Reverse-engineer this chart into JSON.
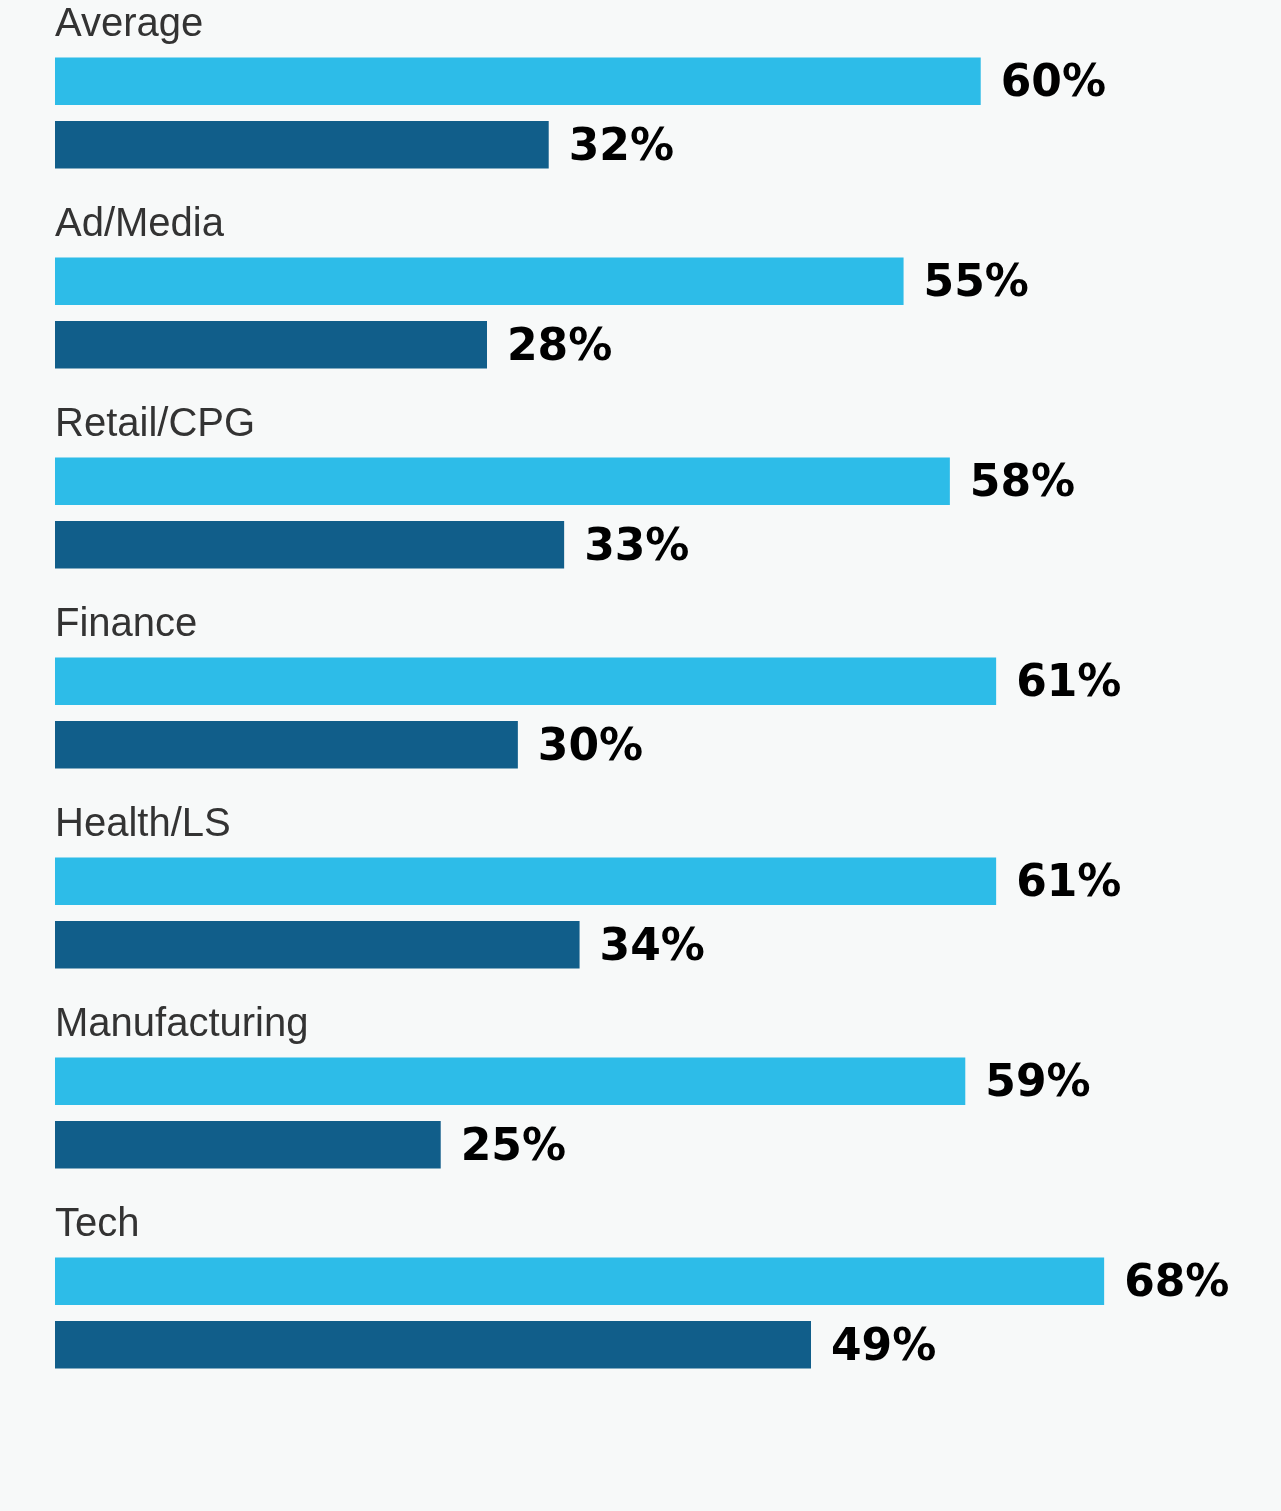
{
  "chart_data": {
    "type": "bar",
    "orientation": "horizontal",
    "categories": [
      "Average",
      "Ad/Media",
      "Retail/CPG",
      "Finance",
      "Health/LS",
      "Manufacturing",
      "Tech"
    ],
    "series": [
      {
        "color": "#2dbce8",
        "values": [
          60,
          55,
          58,
          61,
          61,
          59,
          68
        ],
        "value_labels": [
          "60%",
          "55%",
          "58%",
          "61%",
          "61%",
          "59%",
          "68%"
        ]
      },
      {
        "color": "#115e8a",
        "values": [
          32,
          28,
          33,
          30,
          34,
          25,
          49
        ],
        "value_labels": [
          "32%",
          "28%",
          "33%",
          "30%",
          "34%",
          "25%",
          "49%"
        ]
      }
    ],
    "legend": false
  }
}
